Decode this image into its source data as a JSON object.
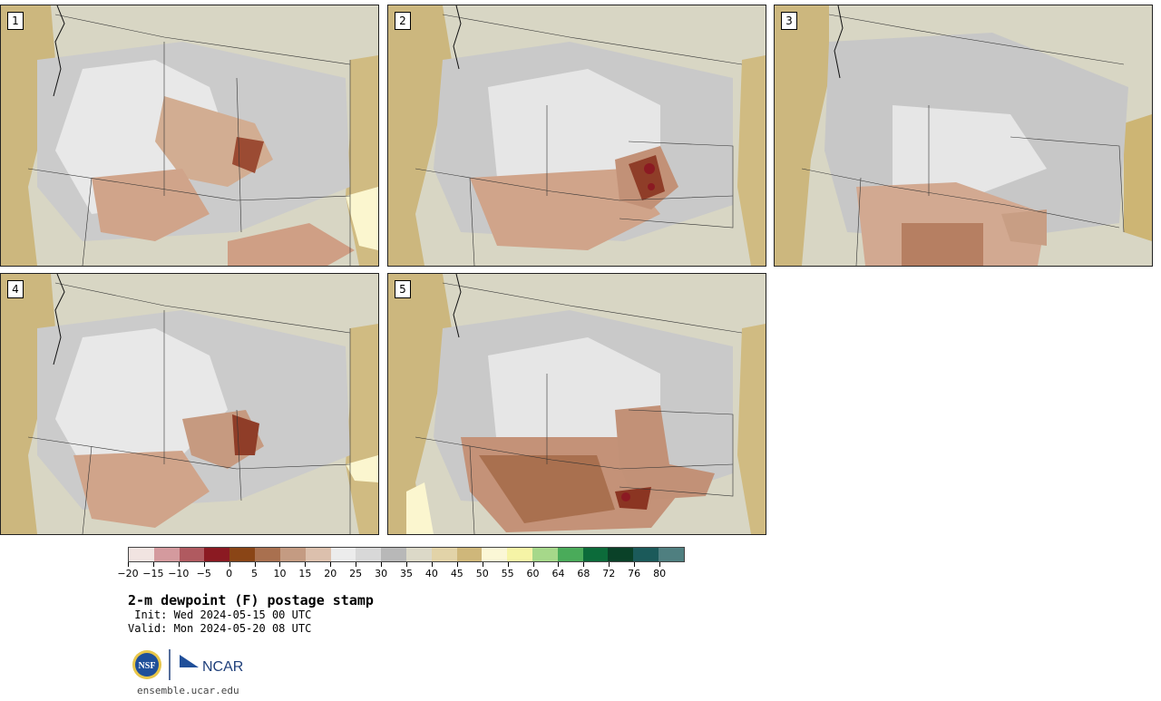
{
  "panels": [
    {
      "label": "1"
    },
    {
      "label": "2"
    },
    {
      "label": "3"
    },
    {
      "label": "4"
    },
    {
      "label": "5"
    }
  ],
  "colorbar": {
    "colors": [
      "#f1e4e1",
      "#d49a9e",
      "#b05a60",
      "#8b1a22",
      "#8a4516",
      "#a9704f",
      "#c49b82",
      "#dcc0ad",
      "#ececec",
      "#d8d8d8",
      "#b8b8b8",
      "#dcd9c8",
      "#e2d3a8",
      "#cfb77a",
      "#fbf7d6",
      "#f6f4a6",
      "#a6d88a",
      "#4aab5a",
      "#0c6b3a",
      "#0a4128",
      "#1b5a5a",
      "#4f7f80"
    ],
    "tick_labels": [
      "−20",
      "−15",
      "−10",
      "−5",
      "0",
      "5",
      "10",
      "15",
      "20",
      "25",
      "30",
      "35",
      "40",
      "45",
      "50",
      "55",
      "60",
      "64",
      "68",
      "72",
      "76",
      "80"
    ]
  },
  "title": "2-m dewpoint (F) postage stamp",
  "init": " Init: Wed 2024-05-15 00 UTC",
  "valid": "Valid: Mon 2024-05-20 08 UTC",
  "logos": {
    "nsf": "NSF",
    "ncar": "NCAR"
  },
  "site": "ensemble.ucar.edu"
}
